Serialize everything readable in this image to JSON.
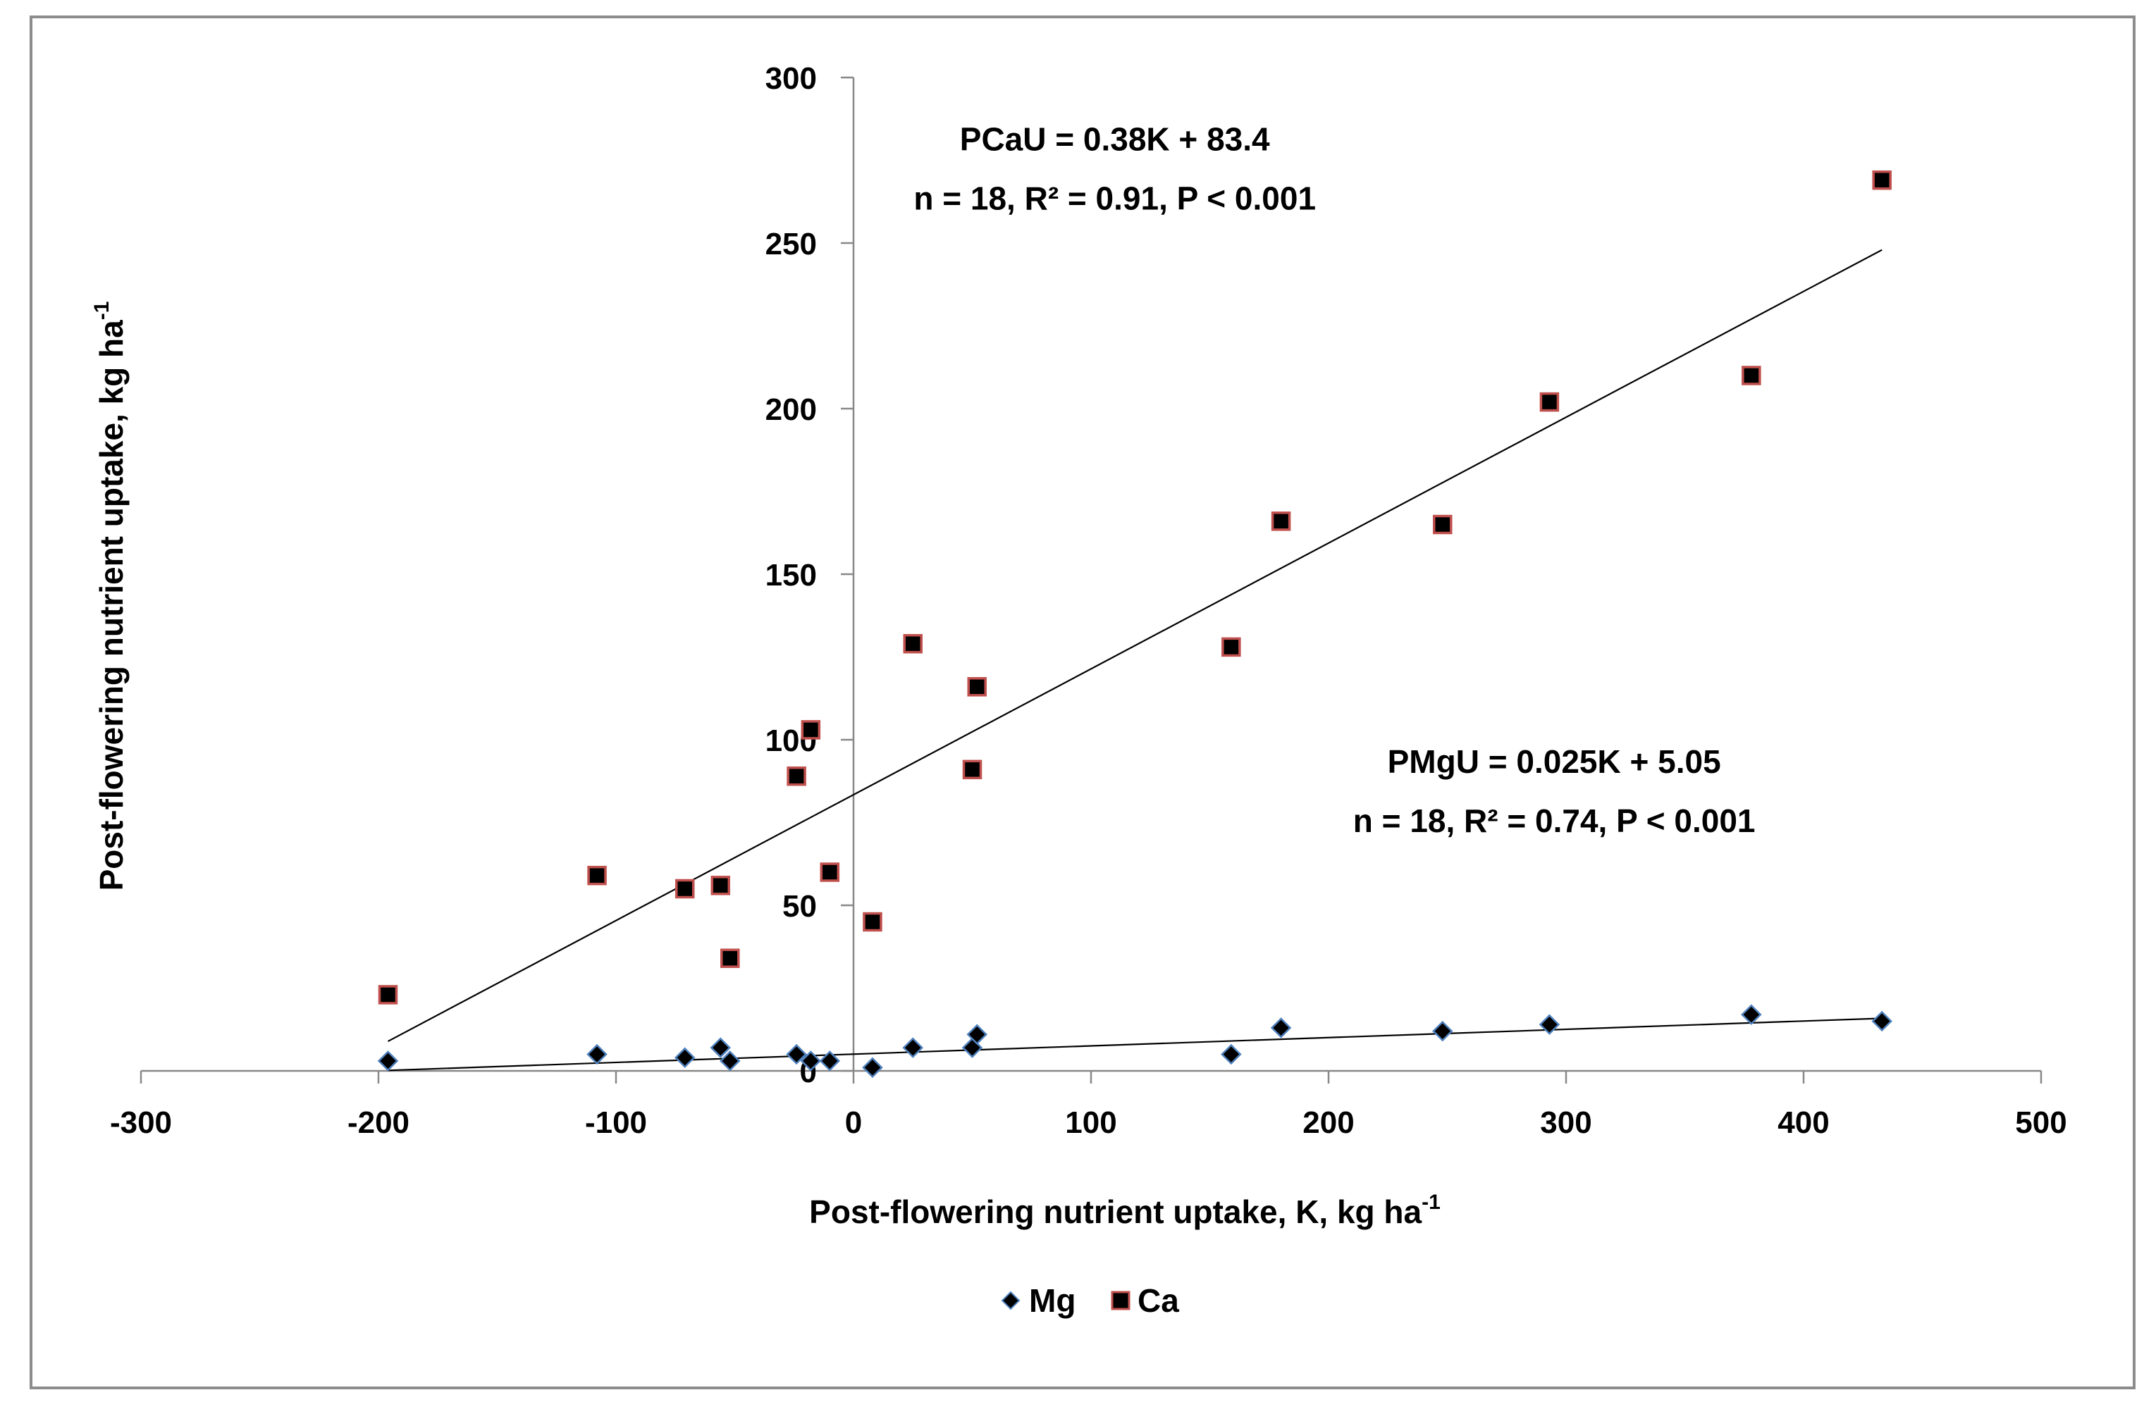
{
  "chart_data": {
    "type": "scatter",
    "title": "",
    "xlabel": "Post-flowering nutrient uptake, K, kg ha",
    "xlabel_sup": "-1",
    "ylabel": "Post-flowering nutrient uptake, kg ha",
    "ylabel_sup": "-1",
    "xlim": [
      -300,
      500
    ],
    "ylim": [
      0,
      300
    ],
    "x_ticks": [
      -300,
      -200,
      -100,
      0,
      100,
      200,
      300,
      400,
      500
    ],
    "y_ticks": [
      0,
      50,
      100,
      150,
      200,
      250,
      300
    ],
    "grid": false,
    "legend_position": "bottom",
    "series": [
      {
        "name": "Mg",
        "marker": "diamond",
        "color": "#000000",
        "edge_color": "#4f81bd",
        "x": [
          -196,
          -108,
          -71,
          -56,
          -52,
          -24,
          -18,
          -10,
          8,
          25,
          50,
          52,
          159,
          180,
          248,
          293,
          378,
          433
        ],
        "y": [
          3,
          5,
          4,
          7,
          3,
          5,
          3,
          3,
          1,
          7,
          7,
          11,
          5,
          13,
          12,
          14,
          17,
          15
        ],
        "trendline": {
          "slope": 0.025,
          "intercept": 5.05,
          "x_range": [
            -196,
            433
          ]
        }
      },
      {
        "name": "Ca",
        "marker": "square",
        "color": "#000000",
        "edge_color": "#c0504d",
        "x": [
          -196,
          -108,
          -71,
          -56,
          -52,
          -24,
          -18,
          -10,
          8,
          25,
          50,
          52,
          159,
          180,
          248,
          293,
          378,
          433
        ],
        "y": [
          23,
          59,
          55,
          56,
          34,
          89,
          103,
          60,
          45,
          129,
          91,
          116,
          128,
          166,
          165,
          202,
          210,
          269
        ],
        "trendline": {
          "slope": 0.38,
          "intercept": 83.4,
          "x_range": [
            -196,
            433
          ]
        }
      }
    ],
    "annotations": [
      {
        "id": "ca-eq",
        "lines": [
          "PCaU = 0.38K + 83.4",
          "n = 18, R² = 0.91, P < 0.001"
        ],
        "x": 110,
        "y": 278,
        "anchor": "middle"
      },
      {
        "id": "mg-eq",
        "lines": [
          "PMgU = 0.025K + 5.05",
          "n = 18, R² = 0.74, P < 0.001"
        ],
        "x": 295,
        "y": 90,
        "anchor": "middle"
      }
    ]
  }
}
